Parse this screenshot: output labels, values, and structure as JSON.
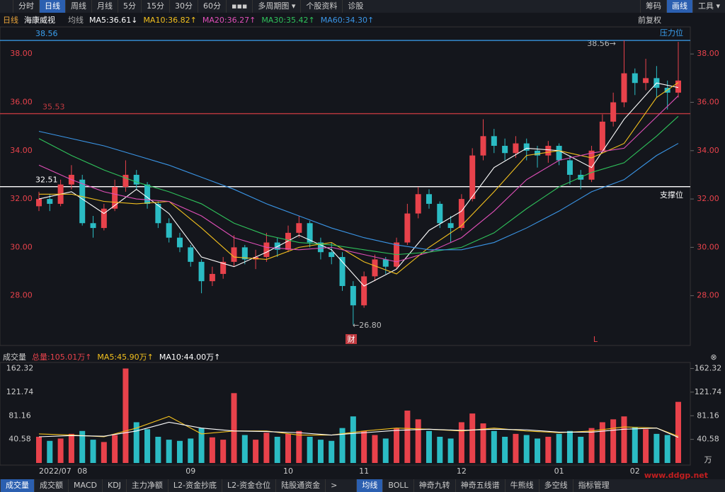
{
  "toolbar": {
    "left": [
      "分时",
      "日线",
      "周线",
      "月线",
      "5分",
      "15分",
      "30分",
      "60分",
      "▪▪▪",
      "多周期图 ▾",
      "个股资料",
      "诊股"
    ],
    "right": [
      "筹码",
      "画线",
      "工具 ▾"
    ]
  },
  "chart_data": [
    {
      "type": "candlestick",
      "period": "日线",
      "stock": "海康威视",
      "ma_label": "均线",
      "adjust": "前复权",
      "categories": [
        "2022/07",
        null,
        null,
        null,
        "08",
        null,
        null,
        null,
        null,
        null,
        null,
        null,
        null,
        null,
        "09",
        null,
        null,
        null,
        null,
        null,
        null,
        null,
        null,
        "10",
        null,
        null,
        null,
        null,
        null,
        null,
        "11",
        null,
        null,
        null,
        null,
        null,
        null,
        null,
        null,
        "12",
        null,
        null,
        null,
        null,
        null,
        null,
        null,
        null,
        "01",
        null,
        null,
        null,
        null,
        null,
        null,
        "02",
        null,
        null,
        null,
        null
      ],
      "open": [
        31.7,
        32.0,
        31.8,
        32.6,
        32.8,
        31.0,
        30.8,
        31.6,
        32.5,
        33.0,
        32.6,
        31.8,
        31.0,
        30.4,
        30.0,
        29.4,
        28.6,
        28.9,
        29.4,
        30.0,
        29.5,
        29.6,
        30.2,
        29.9,
        30.6,
        31.0,
        30.2,
        29.8,
        29.6,
        28.4,
        27.6,
        28.8,
        29.5,
        29.2,
        30.2,
        31.4,
        32.2,
        31.8,
        31.0,
        30.8,
        32.0,
        33.8,
        34.6,
        34.2,
        33.9,
        34.3,
        34.0,
        33.8,
        34.2,
        33.6,
        33.0,
        32.8,
        34.0,
        35.2,
        36.0,
        37.2,
        36.8,
        37.0,
        36.6,
        36.4
      ],
      "high": [
        32.3,
        32.2,
        32.8,
        33.4,
        33.0,
        31.3,
        31.8,
        32.8,
        33.6,
        33.2,
        32.7,
        31.9,
        31.2,
        30.6,
        30.1,
        29.5,
        29.2,
        29.6,
        30.5,
        30.1,
        29.9,
        30.6,
        30.4,
        30.9,
        31.3,
        31.1,
        30.4,
        30.2,
        29.8,
        28.6,
        29.0,
        29.7,
        29.6,
        30.4,
        31.8,
        32.5,
        32.4,
        31.9,
        31.3,
        32.2,
        34.1,
        35.3,
        34.9,
        34.5,
        34.6,
        34.5,
        34.2,
        34.4,
        34.3,
        33.8,
        33.2,
        34.2,
        35.5,
        36.4,
        38.56,
        37.4,
        37.8,
        37.5,
        36.9,
        38.5
      ],
      "low": [
        31.5,
        31.5,
        31.7,
        32.4,
        30.9,
        30.4,
        30.7,
        31.5,
        32.3,
        32.4,
        31.6,
        30.8,
        30.2,
        29.8,
        29.2,
        28.1,
        28.4,
        28.7,
        29.2,
        29.3,
        29.1,
        29.4,
        29.6,
        29.8,
        30.4,
        30.0,
        29.5,
        29.3,
        28.2,
        26.8,
        27.5,
        28.6,
        28.9,
        29.1,
        30.1,
        31.2,
        31.6,
        30.8,
        30.2,
        30.7,
        31.9,
        33.6,
        33.9,
        33.6,
        33.7,
        33.6,
        33.3,
        33.5,
        33.4,
        32.6,
        32.4,
        32.7,
        33.9,
        35.0,
        35.8,
        36.3,
        36.5,
        36.2,
        35.7,
        36.2
      ],
      "close": [
        32.0,
        31.8,
        32.6,
        33.0,
        31.0,
        30.8,
        31.6,
        32.5,
        33.0,
        32.6,
        31.8,
        31.0,
        30.4,
        30.0,
        29.4,
        28.6,
        28.9,
        29.4,
        30.0,
        29.5,
        29.6,
        30.2,
        29.9,
        30.6,
        31.0,
        30.2,
        29.8,
        29.6,
        28.4,
        27.6,
        28.8,
        29.5,
        29.2,
        30.2,
        31.4,
        32.2,
        31.8,
        31.0,
        30.8,
        32.0,
        33.8,
        34.6,
        34.2,
        33.9,
        34.3,
        34.0,
        33.8,
        34.2,
        33.6,
        33.0,
        32.8,
        34.0,
        35.2,
        36.0,
        37.2,
        36.8,
        37.0,
        36.6,
        36.4,
        36.9
      ],
      "up_color": "#e8424b",
      "down_color": "#2bbcc4",
      "ylim": [
        25.94,
        39.12
      ],
      "yticks": [
        {
          "value": 28,
          "label": "28.00"
        },
        {
          "value": 30,
          "label": "30.00"
        },
        {
          "value": 32,
          "label": "32.00"
        },
        {
          "value": 34,
          "label": "34.00"
        },
        {
          "value": 36,
          "label": "36.00"
        },
        {
          "value": 38,
          "label": "38.00"
        }
      ],
      "lines": {
        "x": [
          0,
          3,
          6,
          9,
          12,
          15,
          18,
          21,
          24,
          27,
          30,
          33,
          36,
          39,
          42,
          45,
          48,
          51,
          54,
          57,
          59
        ],
        "series": [
          {
            "name": "MA5:36.61↓",
            "color": "#ffffff",
            "values": [
              32.0,
              32.3,
              31.4,
              32.4,
              31.4,
              29.6,
              29.2,
              29.8,
              30.5,
              29.9,
              28.4,
              29.1,
              30.7,
              31.5,
              33.3,
              34.1,
              34.0,
              33.3,
              35.3,
              36.8,
              36.61
            ]
          },
          {
            "name": "MA10:36.82↑",
            "color": "#f2c01e",
            "values": [
              32.2,
              32.2,
              31.9,
              31.8,
              31.9,
              30.8,
              29.6,
              29.5,
              30.0,
              30.2,
              29.4,
              28.9,
              30.0,
              30.9,
              32.3,
              33.8,
              34.0,
              33.7,
              34.3,
              36.2,
              36.82
            ]
          },
          {
            "name": "MA20:36.27↑",
            "color": "#e04fb8",
            "values": [
              33.4,
              32.8,
              32.3,
              32.0,
              31.9,
              31.3,
              30.4,
              30.0,
              29.9,
              30.0,
              29.7,
              29.4,
              29.8,
              30.4,
              31.5,
              32.8,
              33.6,
              33.9,
              34.1,
              35.4,
              36.27
            ]
          },
          {
            "name": "MA30:35.42↑",
            "color": "#2fc25b",
            "values": [
              34.5,
              33.8,
              33.2,
              32.7,
              32.3,
              31.8,
              31.0,
              30.5,
              30.2,
              30.1,
              29.9,
              29.7,
              29.8,
              30.0,
              30.6,
              31.6,
              32.5,
              33.1,
              33.5,
              34.6,
              35.42
            ]
          },
          {
            "name": "MA60:34.30↑",
            "color": "#3a95e6",
            "values": [
              34.8,
              34.5,
              34.2,
              33.8,
              33.4,
              32.9,
              32.4,
              31.8,
              31.3,
              30.8,
              30.4,
              30.1,
              29.9,
              29.9,
              30.2,
              30.8,
              31.5,
              32.3,
              32.8,
              33.8,
              34.3
            ]
          }
        ]
      },
      "hlines": [
        {
          "value": 38.56,
          "color": "#3aa0f0"
        },
        {
          "value": 35.53,
          "color": "#c0393f"
        },
        {
          "value": 32.51,
          "color": "#ffffff"
        }
      ],
      "annotations": {
        "resistance": "压力位",
        "support": "支撑位",
        "high": "38.56→",
        "low": "←26.80",
        "event": "财",
        "marker": "L"
      }
    },
    {
      "type": "bar",
      "title": "成交量",
      "total": "总量:105.01万↑",
      "unit": "万",
      "values": [
        45,
        38,
        42,
        50,
        55,
        40,
        36,
        48,
        162.32,
        70,
        58,
        45,
        40,
        38,
        42,
        60,
        44,
        40,
        120,
        48,
        40,
        52,
        45,
        50,
        55,
        45,
        40,
        38,
        60,
        80,
        55,
        48,
        42,
        60,
        90,
        75,
        55,
        45,
        42,
        70,
        85,
        68,
        55,
        45,
        50,
        48,
        42,
        45,
        50,
        55,
        45,
        60,
        70,
        75,
        80,
        62,
        58,
        50,
        48,
        105.01
      ],
      "ylim": [
        0,
        172.7
      ],
      "yticks": [
        40.58,
        81.16,
        121.74,
        162.32
      ],
      "lines": {
        "x": [
          0,
          3,
          6,
          9,
          12,
          15,
          18,
          21,
          24,
          27,
          30,
          33,
          36,
          39,
          42,
          45,
          48,
          51,
          54,
          57,
          59
        ],
        "series": [
          {
            "name": "MA5:45.90万↑",
            "color": "#f2c01e",
            "values": [
              50,
              48,
              45,
              60,
              80,
              50,
              55,
              55,
              48,
              48,
              55,
              60,
              58,
              55,
              60,
              55,
              52,
              55,
              62,
              60,
              45.9
            ]
          },
          {
            "name": "MA10:44.00万↑",
            "color": "#ffffff",
            "values": [
              45,
              47,
              46,
              55,
              70,
              60,
              55,
              54,
              52,
              48,
              52,
              56,
              58,
              56,
              58,
              57,
              53,
              53,
              58,
              60,
              44.0
            ]
          }
        ]
      }
    }
  ],
  "tabs": {
    "left": [
      "成交量",
      "成交额",
      "MACD",
      "KDJ",
      "主力净额",
      "L2-资金抄底",
      "L2-资金仓位",
      "陆股通资金",
      ">"
    ],
    "right": [
      "均线",
      "BOLL",
      "神奇九转",
      "神奇五线谱",
      "牛熊线",
      "多空线",
      "指标管理"
    ]
  },
  "watermark": "www.ddgp.net"
}
